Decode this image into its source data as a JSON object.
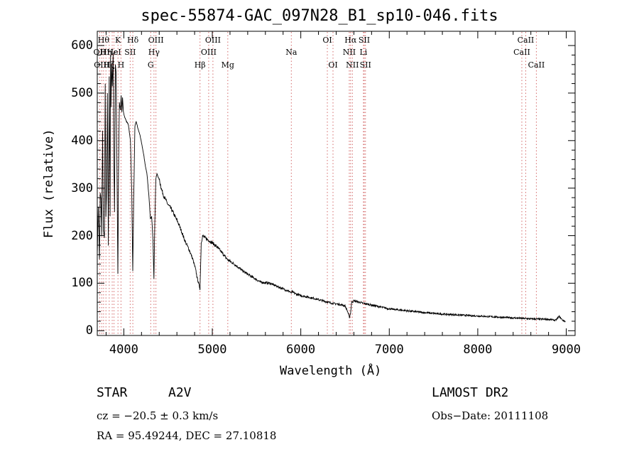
{
  "chart_data": {
    "type": "line",
    "title": "spec-55874-GAC_097N28_B1_sp10-046.fits",
    "xlabel": "Wavelength (Å)",
    "ylabel": "Flux (relative)",
    "xlim": [
      3700,
      9100
    ],
    "ylim": [
      -10,
      630
    ],
    "xticks": [
      4000,
      5000,
      6000,
      7000,
      8000,
      9000
    ],
    "yticks": [
      0,
      100,
      200,
      300,
      400,
      500,
      600
    ],
    "series": [
      {
        "x": [
          3700,
          3712,
          3725,
          3733,
          3741,
          3750,
          3760,
          3770,
          3781,
          3790,
          3798,
          3806,
          3815,
          3825,
          3835,
          3845,
          3850,
          3855,
          3862,
          3870,
          3880,
          3888,
          3895,
          3904,
          3912,
          3920,
          3933,
          3940,
          3950,
          3962,
          3970,
          3978,
          3986,
          3995,
          4010,
          4030,
          4050,
          4075,
          4090,
          4101,
          4112,
          4125,
          4140,
          4160,
          4185,
          4200,
          4225,
          4245,
          4262,
          4285,
          4300,
          4315,
          4330,
          4340,
          4350,
          4362,
          4375,
          4400,
          4430,
          4460,
          4500,
          4540,
          4580,
          4620,
          4660,
          4700,
          4740,
          4780,
          4810,
          4830,
          4845,
          4861,
          4875,
          4890,
          4920,
          4960,
          5000,
          5060,
          5120,
          5170,
          5250,
          5350,
          5450,
          5550,
          5650,
          5750,
          5850,
          5880,
          5890,
          5900,
          5960,
          6050,
          6150,
          6250,
          6350,
          6450,
          6500,
          6530,
          6550,
          6563,
          6575,
          6600,
          6700,
          6800,
          6900,
          7000,
          7200,
          7400,
          7600,
          7800,
          8000,
          8200,
          8400,
          8600,
          8800,
          8880,
          8920,
          8960,
          8990
        ],
        "y": [
          160,
          260,
          150,
          290,
          280,
          200,
          420,
          210,
          195,
          520,
          240,
          300,
          500,
          180,
          535,
          240,
          580,
          470,
          560,
          515,
          585,
          350,
          250,
          560,
          545,
          400,
          120,
          330,
          480,
          465,
          495,
          460,
          490,
          460,
          450,
          440,
          435,
          400,
          290,
          125,
          280,
          430,
          440,
          425,
          410,
          395,
          370,
          345,
          330,
          280,
          235,
          240,
          190,
          110,
          225,
          320,
          330,
          318,
          295,
          280,
          265,
          255,
          240,
          225,
          205,
          185,
          170,
          150,
          130,
          110,
          100,
          88,
          185,
          200,
          195,
          190,
          185,
          175,
          162,
          150,
          140,
          125,
          113,
          102,
          100,
          92,
          84,
          82,
          78,
          82,
          76,
          72,
          68,
          63,
          58,
          55,
          52,
          40,
          28,
          38,
          60,
          63,
          58,
          54,
          50,
          46,
          42,
          38,
          35,
          33,
          31,
          29,
          27,
          25,
          24,
          22,
          30,
          22,
          20
        ]
      }
    ],
    "line_markers": [
      {
        "x": 3727,
        "label": "OII",
        "row": 1
      },
      {
        "x": 3750,
        "label": "OIII",
        "row": 2
      },
      {
        "x": 3771,
        "label": "Hθ",
        "row": 0
      },
      {
        "x": 3798,
        "label": "Hη",
        "row": 1
      },
      {
        "x": 3835,
        "label": "Hζ",
        "row": 2
      },
      {
        "x": 3869,
        "label": "Hε",
        "row": 1
      },
      {
        "x": 3889,
        "label": "HeI",
        "row": 1
      },
      {
        "x": 3934,
        "label": "K",
        "row": 0
      },
      {
        "x": 3968,
        "label": "H",
        "row": 2
      },
      {
        "x": 4072,
        "label": "SII",
        "row": 1
      },
      {
        "x": 4102,
        "label": "Hδ",
        "row": 0
      },
      {
        "x": 4304,
        "label": "G",
        "row": 2
      },
      {
        "x": 4341,
        "label": "Hγ",
        "row": 1
      },
      {
        "x": 4363,
        "label": "OIII",
        "row": 0
      },
      {
        "x": 4861,
        "label": "Hβ",
        "row": 2
      },
      {
        "x": 4959,
        "label": "OIII",
        "row": 1
      },
      {
        "x": 5007,
        "label": "OIII",
        "row": 0
      },
      {
        "x": 5175,
        "label": "Mg",
        "row": 2
      },
      {
        "x": 5893,
        "label": "Na",
        "row": 1
      },
      {
        "x": 6300,
        "label": "OI",
        "row": 0
      },
      {
        "x": 6364,
        "label": "OI",
        "row": 2
      },
      {
        "x": 6548,
        "label": "NII",
        "row": 1
      },
      {
        "x": 6563,
        "label": "Hα",
        "row": 0
      },
      {
        "x": 6583,
        "label": "NII",
        "row": 2
      },
      {
        "x": 6708,
        "label": "Li",
        "row": 1
      },
      {
        "x": 6717,
        "label": "SII",
        "row": 0
      },
      {
        "x": 6731,
        "label": "SII",
        "row": 2
      },
      {
        "x": 8498,
        "label": "CaII",
        "row": 1
      },
      {
        "x": 8542,
        "label": "CaII",
        "row": 0
      },
      {
        "x": 8662,
        "label": "CaII",
        "row": 2
      }
    ],
    "grid": false
  },
  "info": {
    "object_type": "STAR",
    "subclass": "A2V",
    "survey": "LAMOST DR2",
    "cz": "cz = −20.5 ± 0.3 km/s",
    "obs_date": "Obs−Date: 20111108",
    "coords": "RA =  95.49244, DEC =  27.10818"
  },
  "colors": {
    "marker": "#d46a6a",
    "axes": "#000000",
    "spectrum": "#000000"
  }
}
